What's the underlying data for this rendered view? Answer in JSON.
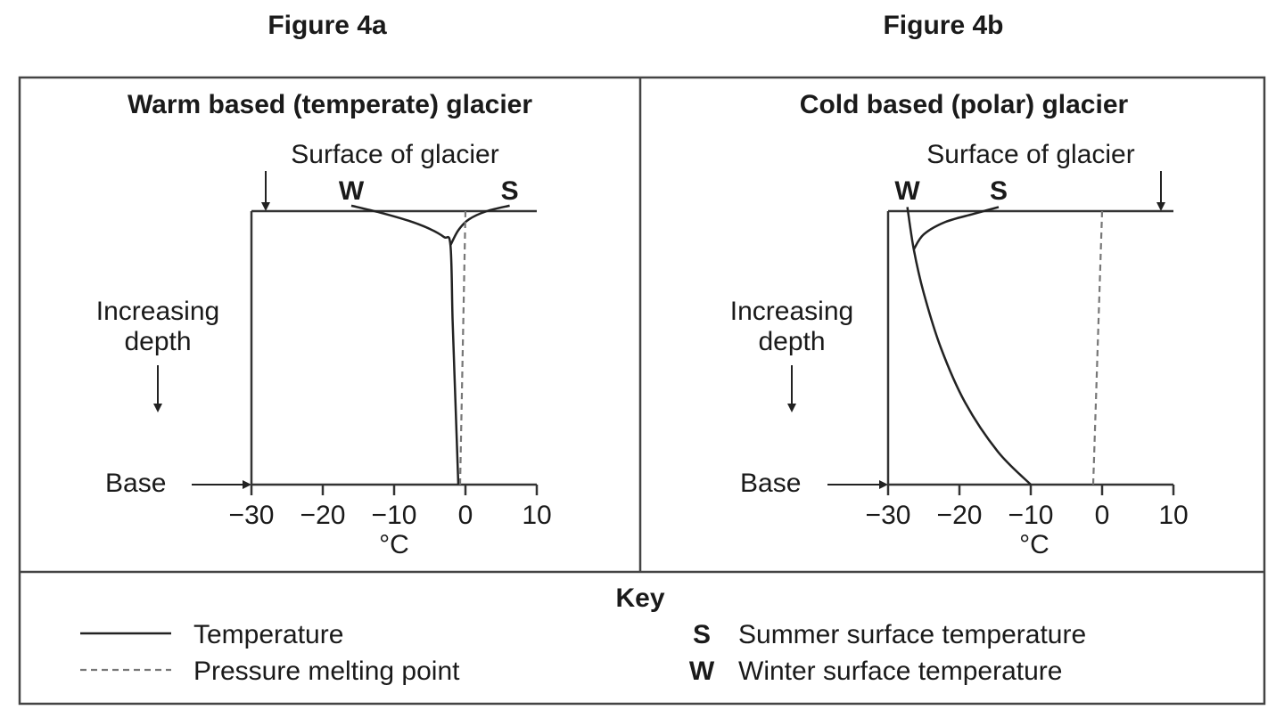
{
  "figures": [
    {
      "label": "Figure 4a",
      "title": "Warm based (temperate) glacier",
      "surface_label": "Surface of glacier",
      "depth_label": [
        "Increasing",
        "depth"
      ],
      "base_label": "Base",
      "unit_label": "°C",
      "winter_marker": "W",
      "summer_marker": "S"
    },
    {
      "label": "Figure 4b",
      "title": "Cold based (polar) glacier",
      "surface_label": "Surface of glacier",
      "depth_label": [
        "Increasing",
        "depth"
      ],
      "base_label": "Base",
      "unit_label": "°C",
      "winter_marker": "W",
      "summer_marker": "S"
    }
  ],
  "key": {
    "title": "Key",
    "items": [
      {
        "symbol": "solid-line",
        "label": "Temperature"
      },
      {
        "symbol": "dashed-line",
        "label": "Pressure melting point"
      },
      {
        "symbol": "S",
        "label": "Summer surface temperature"
      },
      {
        "symbol": "W",
        "label": "Winter surface temperature"
      }
    ]
  },
  "chart_data": [
    {
      "type": "line",
      "title": "Warm based (temperate) glacier",
      "xlabel": "°C",
      "ylabel": "Increasing depth",
      "xlim": [
        -30,
        10
      ],
      "xticks": [
        "−30",
        "−20",
        "−10",
        "0",
        "10"
      ],
      "xtick_values": [
        -30,
        -20,
        -10,
        0,
        10
      ],
      "ylim_labels": [
        "Surface of glacier",
        "Base"
      ],
      "depth_scale": "relative depth 0 (surface) to 1 (base)",
      "series": [
        {
          "name": "Temperature",
          "style": "solid",
          "branch": "W",
          "points": [
            [
              -16,
              -0.02
            ],
            [
              -12,
              0.005
            ],
            [
              -8,
              0.035
            ],
            [
              -5,
              0.065
            ],
            [
              -3,
              0.095
            ],
            [
              -2.1,
              0.125
            ],
            [
              -1.8,
              0.4
            ],
            [
              -1.4,
              0.7
            ],
            [
              -1,
              1
            ]
          ]
        },
        {
          "name": "Temperature",
          "style": "solid",
          "branch": "S",
          "points": [
            [
              6.2,
              -0.02
            ],
            [
              3,
              0.0
            ],
            [
              0.5,
              0.03
            ],
            [
              -1,
              0.07
            ],
            [
              -2.1,
              0.125
            ]
          ]
        },
        {
          "name": "Pressure melting point",
          "style": "dashed",
          "points": [
            [
              0,
              0
            ],
            [
              -0.75,
              1
            ]
          ]
        }
      ]
    },
    {
      "type": "line",
      "title": "Cold based (polar) glacier",
      "xlabel": "°C",
      "ylabel": "Increasing depth",
      "xlim": [
        -30,
        10
      ],
      "xticks": [
        "−30",
        "−20",
        "−10",
        "0",
        "10"
      ],
      "xtick_values": [
        -30,
        -20,
        -10,
        0,
        10
      ],
      "ylim_labels": [
        "Surface of glacier",
        "Base"
      ],
      "depth_scale": "relative depth 0 (surface) to 1 (base)",
      "series": [
        {
          "name": "Temperature",
          "style": "solid",
          "branch": "W",
          "points": [
            [
              -27.3,
              -0.015
            ],
            [
              -26.4,
              0.14
            ],
            [
              -25,
              0.3
            ],
            [
              -22.6,
              0.5
            ],
            [
              -19.2,
              0.7
            ],
            [
              -14.6,
              0.88
            ],
            [
              -10,
              1
            ]
          ]
        },
        {
          "name": "Temperature",
          "style": "solid",
          "branch": "S",
          "points": [
            [
              -14.5,
              -0.015
            ],
            [
              -18,
              0.01
            ],
            [
              -22,
              0.04
            ],
            [
              -25,
              0.085
            ],
            [
              -26.4,
              0.14
            ]
          ]
        },
        {
          "name": "Pressure melting point",
          "style": "dashed",
          "points": [
            [
              0,
              0
            ],
            [
              -1.25,
              1
            ]
          ]
        }
      ]
    }
  ]
}
